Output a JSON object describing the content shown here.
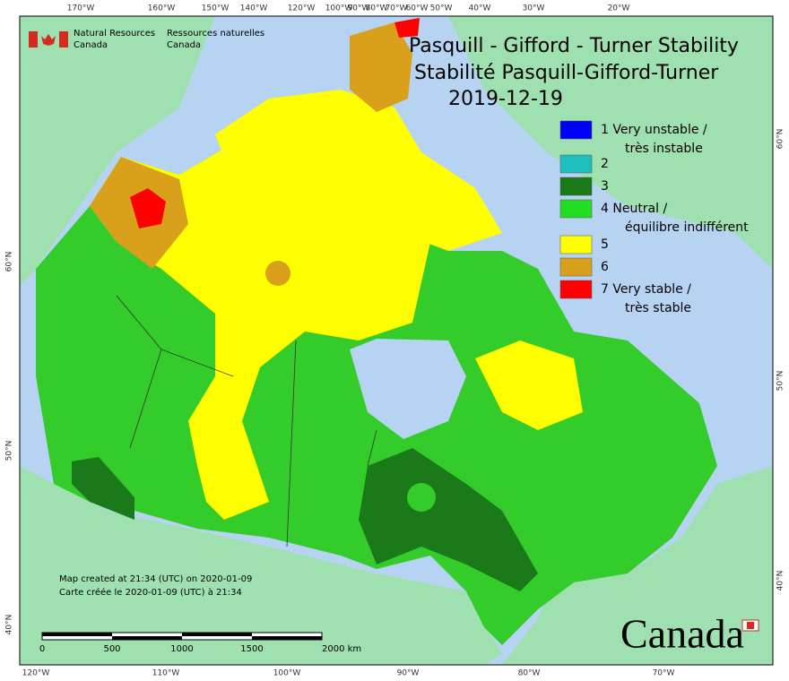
{
  "agency": {
    "en": [
      "Natural Resources",
      "Canada"
    ],
    "fr": [
      "Ressources naturelles",
      "Canada"
    ]
  },
  "title": {
    "en": "Pasquill - Gifford - Turner Stability",
    "fr": "Stabilité Pasquill-Gifford-Turner",
    "date": "2019-12-19"
  },
  "legend": [
    {
      "label": [
        "1 Very unstable /",
        "très instable"
      ],
      "color": "#0000ff"
    },
    {
      "label": [
        "2"
      ],
      "color": "#1fbfbf"
    },
    {
      "label": [
        "3"
      ],
      "color": "#1a7a1a"
    },
    {
      "label": [
        "4 Neutral /",
        "équilibre indifférent"
      ],
      "color": "#22dd22"
    },
    {
      "label": [
        "5"
      ],
      "color": "#ffff00"
    },
    {
      "label": [
        "6"
      ],
      "color": "#d9a01c"
    },
    {
      "label": [
        "7 Very stable /",
        "très stable"
      ],
      "color": "#ff0000"
    }
  ],
  "credits": [
    "Map created at 21:34 (UTC) on 2020-01-09",
    "Carte créée le 2020-01-09 (UTC) à 21:34"
  ],
  "scale_bar": [
    "0",
    "500",
    "1000",
    "1500",
    "2000 km"
  ],
  "graticule": {
    "top": [
      "170°W",
      "160°W",
      "150°W",
      "140°W",
      "120°W",
      "100°W",
      "90°W",
      "80°W",
      "70°W",
      "60°W",
      "50°W",
      "40°W",
      "30°W",
      "20°W"
    ],
    "bottom": [
      "120°W",
      "110°W",
      "100°W",
      "90°W",
      "80°W",
      "70°W"
    ],
    "left": [
      "60°N",
      "50°N",
      "40°N"
    ],
    "right": [
      "60°N",
      "50°N",
      "40°N"
    ]
  },
  "wordmark": "Canada"
}
